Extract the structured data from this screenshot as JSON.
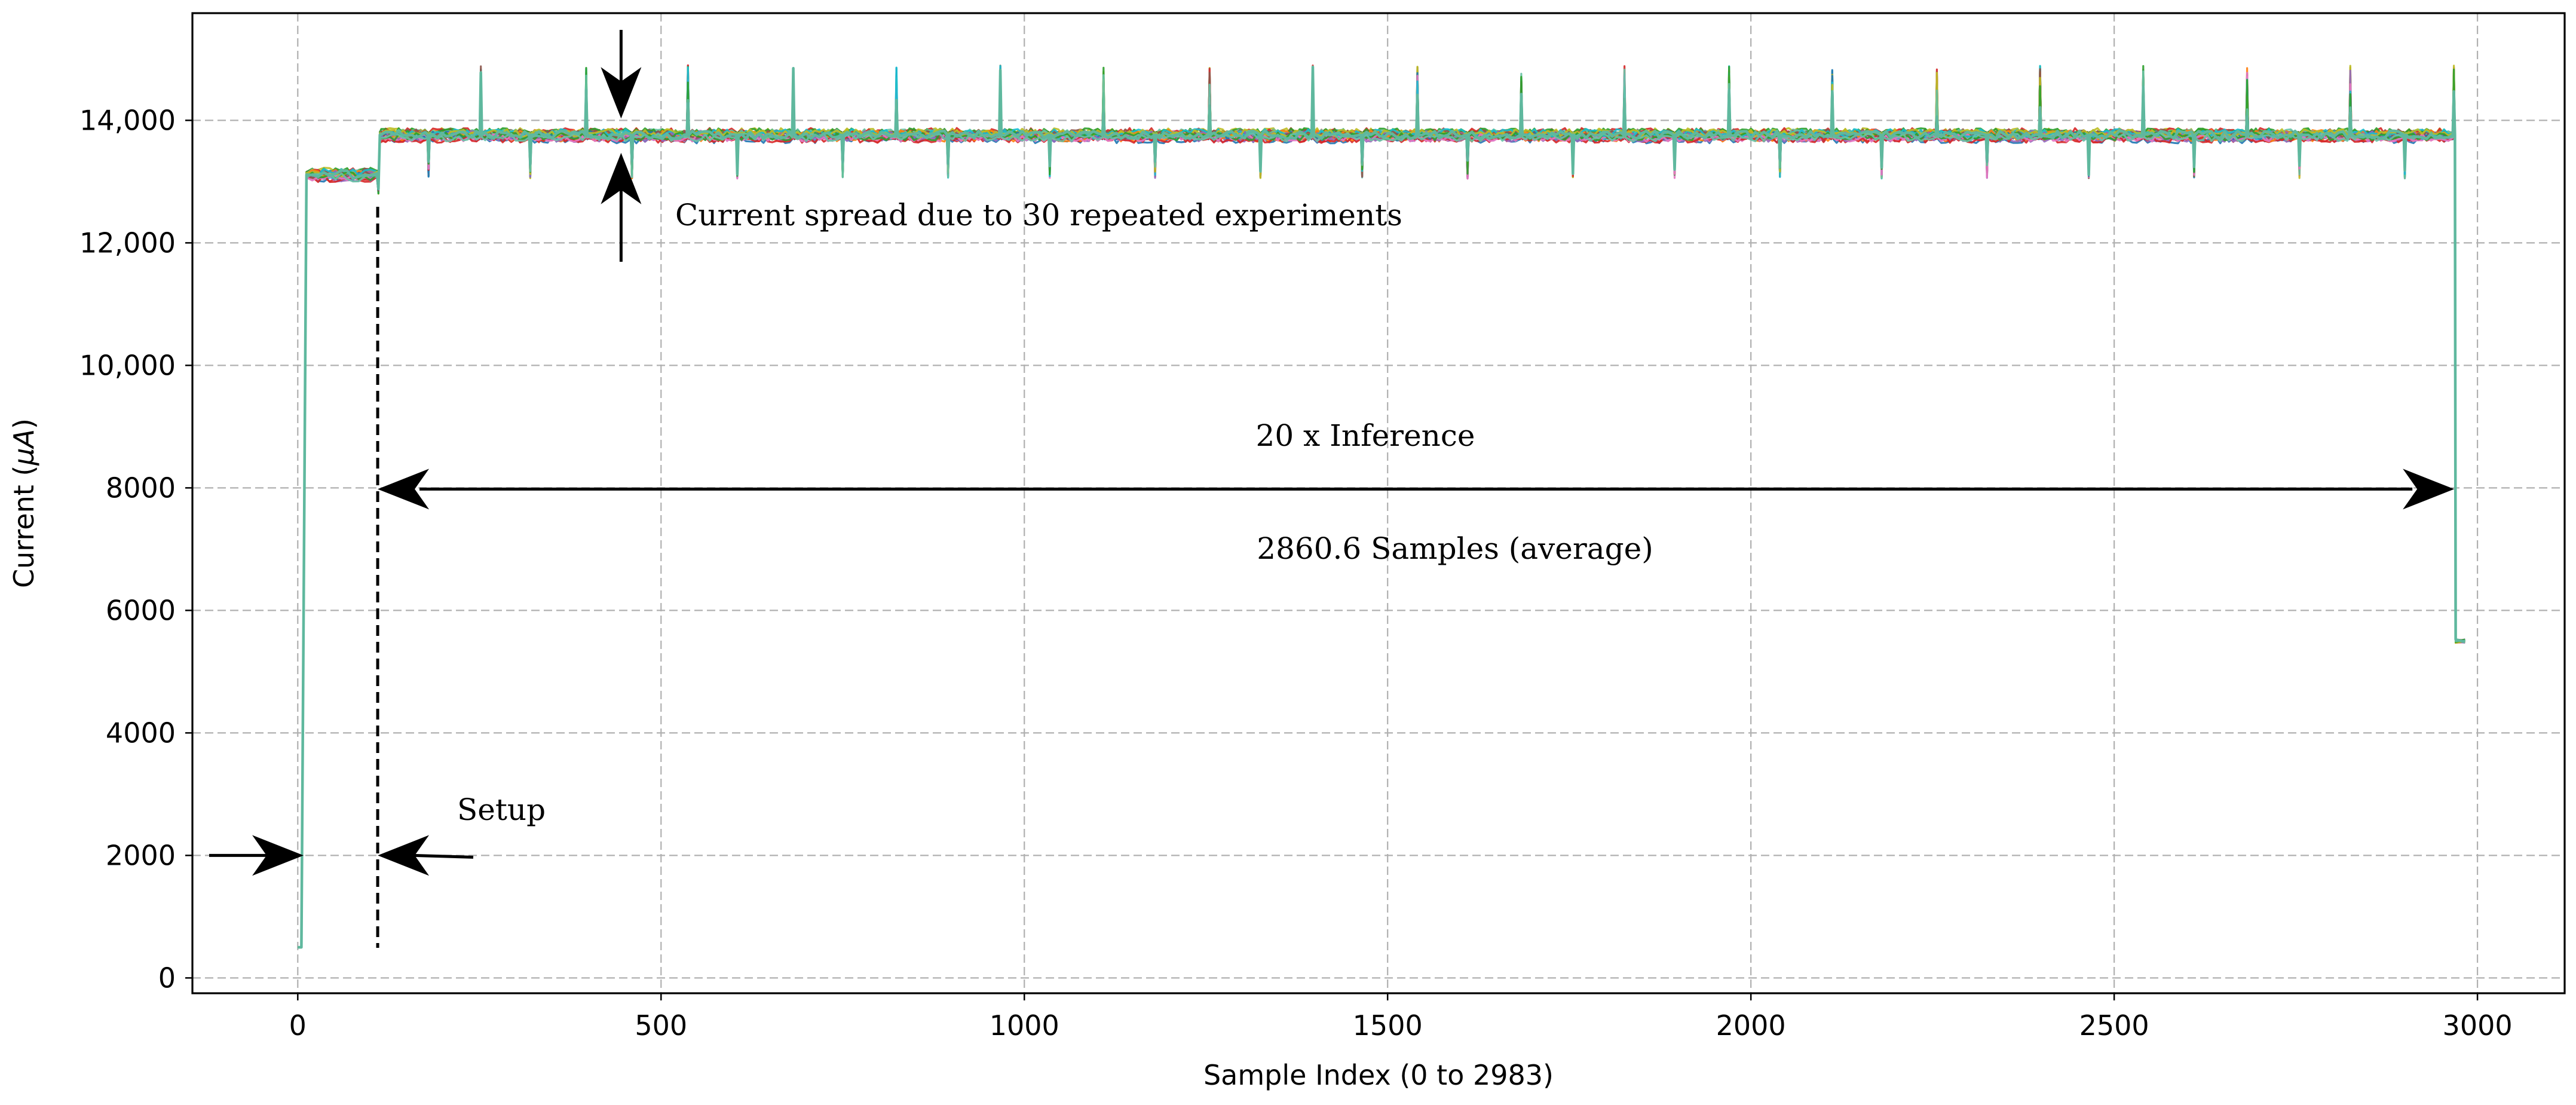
{
  "chart_data": {
    "type": "line",
    "title": "",
    "xlabel": "Sample Index (0 to 2983)",
    "ylabel_main": "Current (",
    "ylabel_mu": "µ",
    "ylabel_A": "A",
    "ylabel_close": ")",
    "xlim": [
      -145,
      3120
    ],
    "ylim": [
      -250,
      15750
    ],
    "xticks": [
      0,
      500,
      1000,
      1500,
      2000,
      2500,
      3000
    ],
    "xtick_labels": [
      "0",
      "500",
      "1000",
      "1500",
      "2000",
      "2500",
      "3000"
    ],
    "yticks": [
      0,
      2000,
      4000,
      6000,
      8000,
      10000,
      12000,
      14000
    ],
    "ytick_labels": [
      "0",
      "2000",
      "4000",
      "6000",
      "8000",
      "10,000",
      "12,000",
      "14,000"
    ],
    "grid": true,
    "series_description": "30 overlaid runs",
    "profile": {
      "baseline": 500,
      "rise_start": 5,
      "rise_end": 12,
      "setup_level": 13100,
      "setup_end": 110,
      "inference_level": 13750,
      "inference_end": 2968,
      "fall_end": 2976,
      "tail_level": 5500,
      "x_end": 2983
    },
    "spike_positions": [
      252,
      397,
      537,
      682,
      824,
      967,
      1109,
      1255,
      1397,
      1541,
      1684,
      1826,
      1970,
      2112,
      2256,
      2398,
      2540,
      2683,
      2825,
      2968
    ],
    "dip_positions": [
      180,
      320,
      460,
      605,
      750,
      895,
      1035,
      1180,
      1325,
      1465,
      1610,
      1755,
      1895,
      2040,
      2180,
      2325,
      2465,
      2610,
      2755,
      2900
    ],
    "spike_peak": 14900,
    "dip_low": 13050,
    "series_colors": [
      "#1f77b4",
      "#ff7f0e",
      "#d62728",
      "#9467bd",
      "#8c564b",
      "#e377c2",
      "#17becf",
      "#bcbd22",
      "#2ca02c",
      "#66c2a5"
    ],
    "annotations": {
      "spread_label": "Current spread due to 30 repeated experiments",
      "inference_label": "20 x Inference",
      "samples_label": "2860.6 Samples (average)",
      "setup_label": "Setup",
      "setup_marker_x": 110,
      "inference_arrow": {
        "x_start": 110,
        "x_end": 2968,
        "y": 7980
      },
      "spread_arrow_x": 445,
      "setup_arrow_y": 2000
    }
  }
}
